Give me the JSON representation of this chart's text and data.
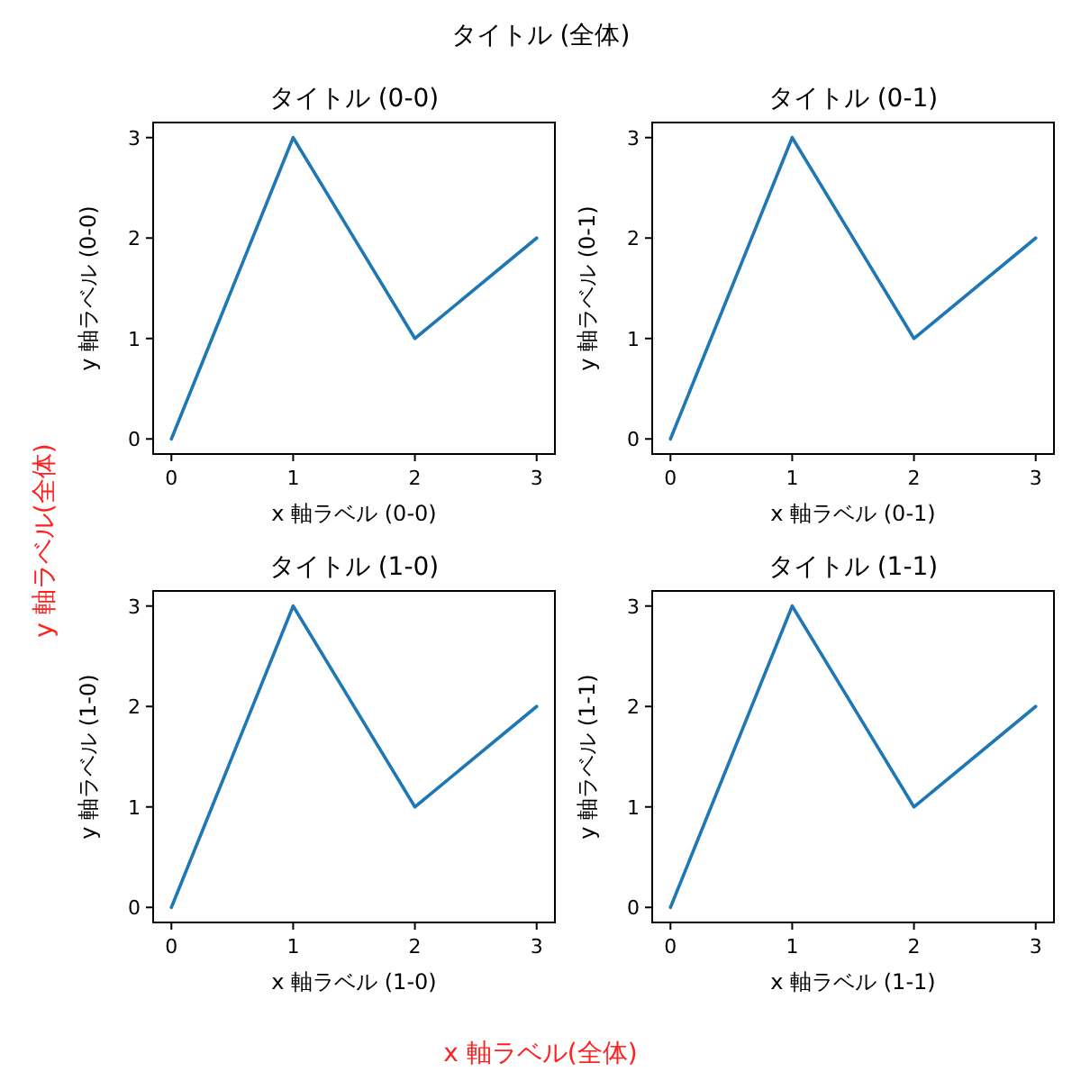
{
  "chart_data": [
    {
      "type": "line",
      "title": "タイトル (0-0)",
      "xlabel": "x 軸ラベル (0-0)",
      "ylabel": "y 軸ラベル (0-0)",
      "x": [
        0,
        1,
        2,
        3
      ],
      "series": [
        {
          "color": "#1f77b4",
          "values": [
            0,
            3,
            1,
            2
          ]
        }
      ],
      "xlim": [
        -0.15,
        3.15
      ],
      "ylim": [
        -0.15,
        3.15
      ],
      "xticks": [
        0,
        1,
        2,
        3
      ],
      "yticks": [
        0,
        1,
        2,
        3
      ]
    },
    {
      "type": "line",
      "title": "タイトル (0-1)",
      "xlabel": "x 軸ラベル (0-1)",
      "ylabel": "y 軸ラベル (0-1)",
      "x": [
        0,
        1,
        2,
        3
      ],
      "series": [
        {
          "color": "#1f77b4",
          "values": [
            0,
            3,
            1,
            2
          ]
        }
      ],
      "xlim": [
        -0.15,
        3.15
      ],
      "ylim": [
        -0.15,
        3.15
      ],
      "xticks": [
        0,
        1,
        2,
        3
      ],
      "yticks": [
        0,
        1,
        2,
        3
      ]
    },
    {
      "type": "line",
      "title": "タイトル (1-0)",
      "xlabel": "x 軸ラベル (1-0)",
      "ylabel": "y 軸ラベル (1-0)",
      "x": [
        0,
        1,
        2,
        3
      ],
      "series": [
        {
          "color": "#1f77b4",
          "values": [
            0,
            3,
            1,
            2
          ]
        }
      ],
      "xlim": [
        -0.15,
        3.15
      ],
      "ylim": [
        -0.15,
        3.15
      ],
      "xticks": [
        0,
        1,
        2,
        3
      ],
      "yticks": [
        0,
        1,
        2,
        3
      ]
    },
    {
      "type": "line",
      "title": "タイトル (1-1)",
      "xlabel": "x 軸ラベル (1-1)",
      "ylabel": "y 軸ラベル (1-1)",
      "x": [
        0,
        1,
        2,
        3
      ],
      "series": [
        {
          "color": "#1f77b4",
          "values": [
            0,
            3,
            1,
            2
          ]
        }
      ],
      "xlim": [
        -0.15,
        3.15
      ],
      "ylim": [
        -0.15,
        3.15
      ],
      "xticks": [
        0,
        1,
        2,
        3
      ],
      "yticks": [
        0,
        1,
        2,
        3
      ]
    },
    {
      "type": "other",
      "title": "タイトル (全体)",
      "xlabel": "x 軸ラベル(全体)",
      "ylabel": "y 軸ラベル(全体)"
    }
  ]
}
